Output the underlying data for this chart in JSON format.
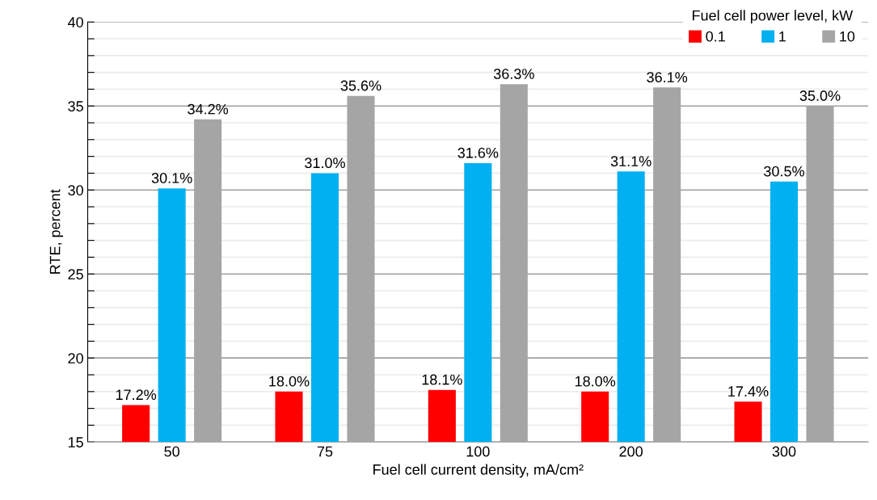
{
  "chart_data": {
    "type": "bar",
    "xlabel": "Fuel cell current density, mA/cm²",
    "ylabel": "RTE, percent",
    "legend_title": "Fuel cell power level, kW",
    "categories": [
      "50",
      "75",
      "100",
      "200",
      "300"
    ],
    "series": [
      {
        "name": "0.1",
        "color": "#ff0000",
        "values": [
          17.2,
          18.0,
          18.1,
          18.0,
          17.4
        ],
        "value_labels": [
          "17.2%",
          "18.0%",
          "18.1%",
          "18.0%",
          "17.4%"
        ]
      },
      {
        "name": "1",
        "color": "#00b0f0",
        "values": [
          30.1,
          31.0,
          31.6,
          31.1,
          30.5
        ],
        "value_labels": [
          "30.1%",
          "31.0%",
          "31.6%",
          "31.1%",
          "30.5%"
        ]
      },
      {
        "name": "10",
        "color": "#a5a5a5",
        "values": [
          34.2,
          35.6,
          36.3,
          36.1,
          35.0
        ],
        "value_labels": [
          "34.2%",
          "35.6%",
          "36.3%",
          "36.1%",
          "35.0%"
        ]
      }
    ],
    "ylim": [
      15,
      40
    ],
    "yticks": [
      15,
      {
        "value": 16,
        "label": null
      },
      {
        "value": 17,
        "label": null
      },
      {
        "value": 18,
        "label": null
      },
      {
        "value": 19,
        "label": null
      },
      20,
      {
        "value": 21,
        "label": null
      },
      {
        "value": 22,
        "label": null
      },
      {
        "value": 23,
        "label": null
      },
      {
        "value": 24,
        "label": null
      },
      25,
      {
        "value": 26,
        "label": null
      },
      {
        "value": 27,
        "label": null
      },
      {
        "value": 28,
        "label": null
      },
      {
        "value": 29,
        "label": null
      },
      30,
      {
        "value": 31,
        "label": null
      },
      {
        "value": 32,
        "label": null
      },
      {
        "value": 33,
        "label": null
      },
      {
        "value": 34,
        "label": null
      },
      35,
      {
        "value": 36,
        "label": null
      },
      {
        "value": 37,
        "label": null
      },
      {
        "value": 38,
        "label": null
      },
      {
        "value": 39,
        "label": null
      },
      40
    ],
    "grid": "y",
    "legend": "top right"
  }
}
